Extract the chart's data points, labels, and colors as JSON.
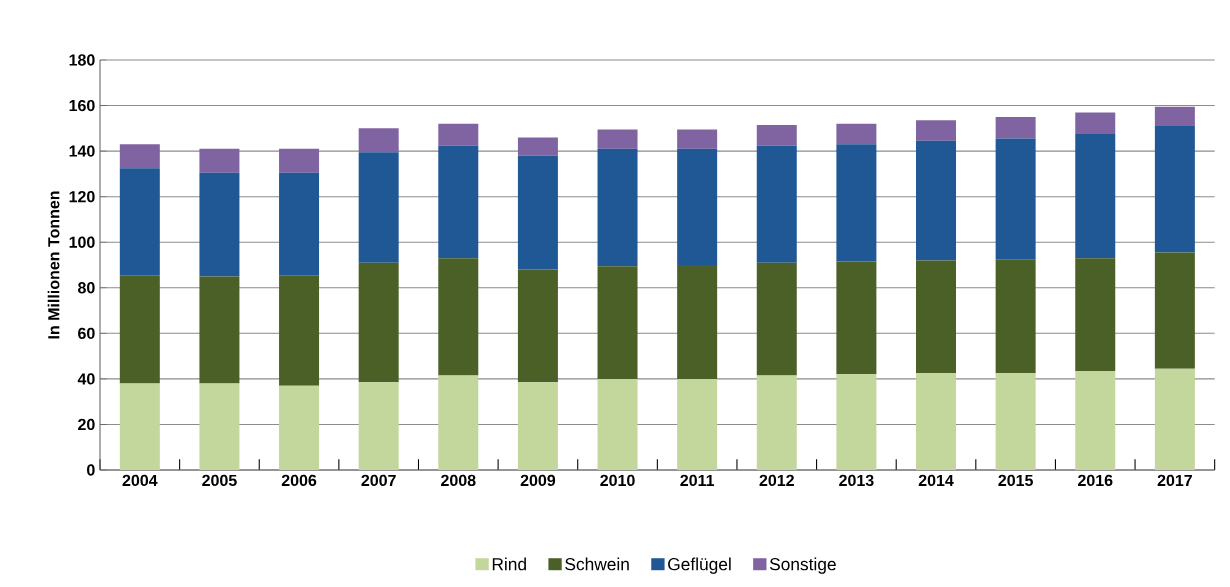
{
  "chart_data": {
    "type": "bar",
    "stacked": true,
    "ylabel": "In Millionen Tonnen",
    "categories": [
      "2004",
      "2005",
      "2006",
      "2007",
      "2008",
      "2009",
      "2010",
      "2011",
      "2012",
      "2013",
      "2014",
      "2015",
      "2016",
      "2017"
    ],
    "series": [
      {
        "name": "Rind",
        "color": "#c3d69b",
        "values": [
          38,
          38,
          37,
          38.5,
          41.5,
          38.5,
          40,
          40,
          41.5,
          42,
          42.5,
          42.5,
          43.5,
          44.5
        ]
      },
      {
        "name": "Schwein",
        "color": "#4a6027",
        "values": [
          47.5,
          47,
          48.5,
          52.5,
          51.5,
          49.5,
          49.5,
          50,
          49.5,
          49.5,
          49.5,
          50,
          49.5,
          51
        ]
      },
      {
        "name": "Geflügel",
        "color": "#1f5894",
        "values": [
          47,
          45.5,
          45,
          48.5,
          49.5,
          50,
          51.5,
          51,
          51.5,
          51.5,
          52.5,
          53,
          54.5,
          55.5
        ]
      },
      {
        "name": "Sonstige",
        "color": "#8064a2",
        "values": [
          10.5,
          10.5,
          10.5,
          10.5,
          9.5,
          8,
          8.5,
          8.5,
          9,
          9,
          9,
          9.5,
          9.5,
          8.5
        ]
      }
    ],
    "ylim": [
      0,
      180
    ],
    "yticks": [
      0,
      20,
      40,
      60,
      80,
      100,
      120,
      140,
      160,
      180
    ],
    "grid": "y",
    "legend": "bottom"
  }
}
